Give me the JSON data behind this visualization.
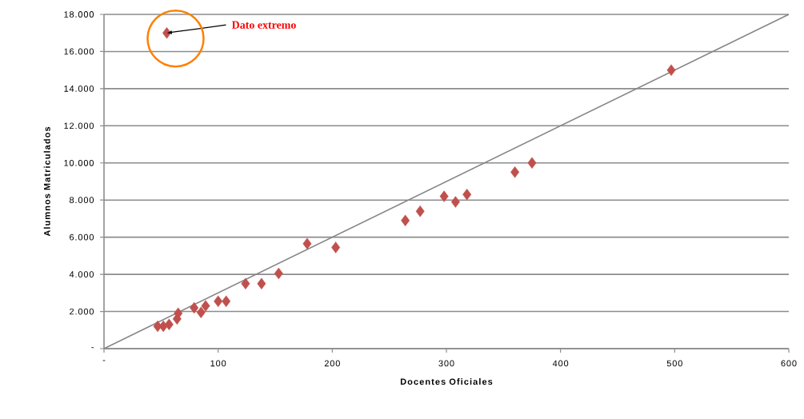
{
  "chart_data": {
    "type": "scatter",
    "xlabel": "Docentes Oficiales",
    "ylabel": "Alumnos Matriculados",
    "xlim": [
      0,
      600
    ],
    "ylim": [
      0,
      18000
    ],
    "xticks": [
      {
        "value": 0,
        "label": "-"
      },
      100,
      200,
      300,
      400,
      500,
      600
    ],
    "yticks": [
      {
        "value": 0,
        "label": "-"
      },
      {
        "value": 2000,
        "label": "2.000"
      },
      {
        "value": 4000,
        "label": "4.000"
      },
      {
        "value": 6000,
        "label": "6.000"
      },
      {
        "value": 8000,
        "label": "8.000"
      },
      {
        "value": 10000,
        "label": "10.000"
      },
      {
        "value": 12000,
        "label": "12.000"
      },
      {
        "value": 14000,
        "label": "14.000"
      },
      {
        "value": 16000,
        "label": "16.000"
      },
      {
        "value": 18000,
        "label": "18.000"
      }
    ],
    "grid": "y",
    "series": [
      {
        "color": "#c0504d",
        "marker": "diamond",
        "x": [
          55,
          497,
          375,
          360,
          318,
          308,
          298,
          277,
          264,
          203,
          178,
          153,
          138,
          124,
          107,
          100,
          89,
          85,
          79,
          65,
          64,
          57,
          52,
          47
        ],
        "values": [
          17000,
          15000,
          10000,
          9500,
          8300,
          7900,
          8200,
          7400,
          6900,
          5450,
          5650,
          4050,
          3500,
          3500,
          2550,
          2550,
          2300,
          1950,
          2200,
          1900,
          1600,
          1300,
          1200,
          1200
        ]
      },
      {
        "type": "line",
        "color": "#868686",
        "marker": "none",
        "x": [
          0,
          600
        ],
        "values": [
          0,
          18000
        ]
      }
    ],
    "annotations": [
      {
        "text": "Dato extremo",
        "x": 55,
        "y": 17000
      }
    ]
  }
}
